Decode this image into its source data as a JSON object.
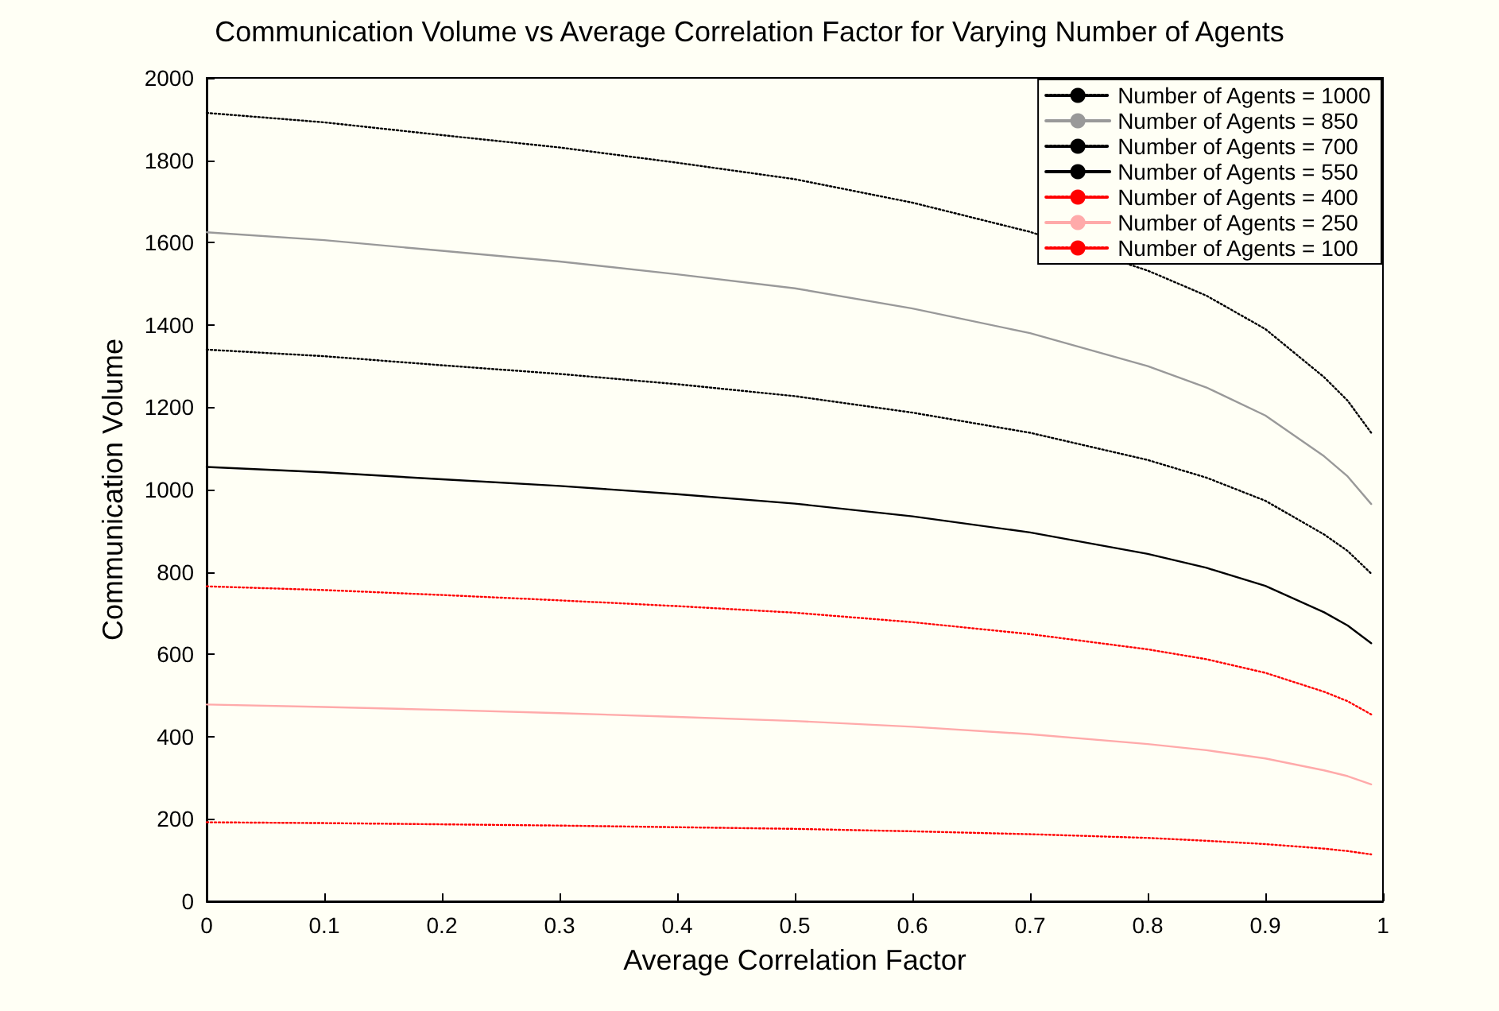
{
  "chart_data": {
    "type": "line",
    "title": "Communication Volume vs Average Correlation Factor for Varying Number of Agents",
    "xlabel": "Average Correlation Factor",
    "ylabel": "Communication Volume",
    "x": [
      0,
      0.1,
      0.2,
      0.3,
      0.4,
      0.5,
      0.6,
      0.7,
      0.8,
      0.85,
      0.9,
      0.95,
      0.97,
      0.99
    ],
    "series": [
      {
        "name": "Number of Agents = 1000",
        "color": "#000000",
        "line_style": "dotted",
        "values": [
          1915,
          1892,
          1861,
          1831,
          1794,
          1754,
          1697,
          1626,
          1532,
          1471,
          1390,
          1273,
          1216,
          1138
        ]
      },
      {
        "name": "Number of Agents = 850",
        "color": "#999999",
        "line_style": "solid",
        "values": [
          1625,
          1606,
          1580,
          1554,
          1523,
          1489,
          1440,
          1380,
          1300,
          1248,
          1180,
          1081,
          1032,
          965
        ]
      },
      {
        "name": "Number of Agents = 700",
        "color": "#000000",
        "line_style": "dotted",
        "values": [
          1340,
          1324,
          1302,
          1281,
          1256,
          1227,
          1187,
          1138,
          1072,
          1029,
          973,
          891,
          851,
          796
        ]
      },
      {
        "name": "Number of Agents = 550",
        "color": "#000000",
        "line_style": "solid",
        "values": [
          1055,
          1042,
          1025,
          1009,
          989,
          966,
          935,
          896,
          844,
          810,
          766,
          702,
          670,
          627
        ]
      },
      {
        "name": "Number of Agents = 400",
        "color": "#ff0000",
        "line_style": "dotted",
        "values": [
          765,
          756,
          744,
          731,
          717,
          701,
          678,
          649,
          612,
          588,
          555,
          509,
          486,
          454
        ]
      },
      {
        "name": "Number of Agents = 250",
        "color": "#ffaaaa",
        "line_style": "solid",
        "values": [
          478,
          472,
          465,
          457,
          448,
          438,
          424,
          406,
          382,
          367,
          347,
          318,
          304,
          284
        ]
      },
      {
        "name": "Number of Agents = 100",
        "color": "#ff0000",
        "line_style": "dotted",
        "values": [
          192,
          190,
          187,
          184,
          180,
          176,
          170,
          163,
          154,
          147,
          139,
          128,
          122,
          114
        ]
      }
    ],
    "xlim": [
      0,
      1
    ],
    "xticks": [
      0,
      0.1,
      0.2,
      0.3,
      0.4,
      0.5,
      0.6,
      0.7,
      0.8,
      0.9,
      1
    ],
    "ylim": [
      0,
      2000
    ],
    "yticks": [
      0,
      200,
      400,
      600,
      800,
      1000,
      1200,
      1400,
      1600,
      1800,
      2000
    ],
    "grid": false,
    "legend": "top right",
    "marker": "none"
  }
}
